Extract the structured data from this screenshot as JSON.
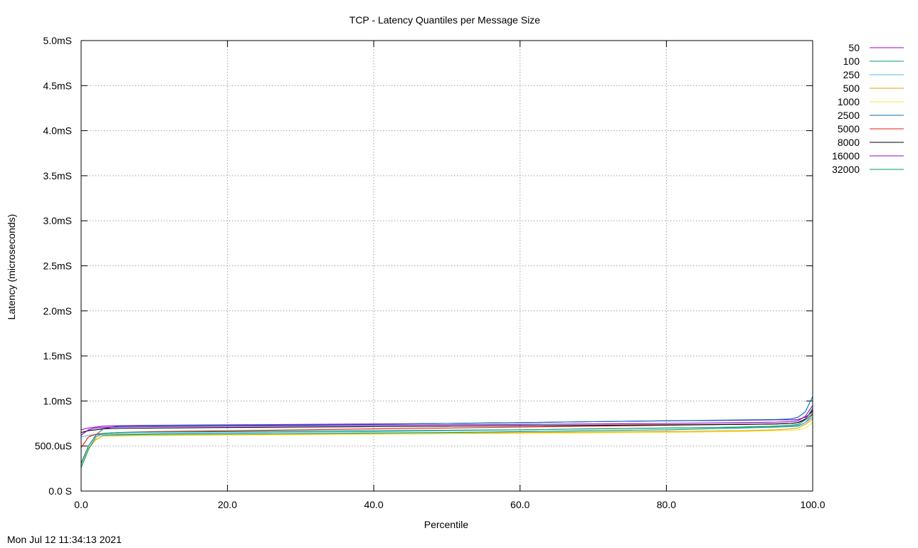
{
  "footer": {
    "timestamp": "Mon Jul 12 11:34:13 2021"
  },
  "chart_data": {
    "type": "line",
    "title": "TCP - Latency Quantiles per Message Size",
    "xlabel": "Percentile",
    "ylabel": "Latency (microseconds)",
    "xlim": [
      0,
      100
    ],
    "ylim": [
      0,
      5000
    ],
    "x_ticks": [
      0,
      20,
      40,
      60,
      80,
      100
    ],
    "x_tick_labels": [
      "0.0",
      "20.0",
      "40.0",
      "60.0",
      "80.0",
      "100.0"
    ],
    "y_ticks": [
      0,
      500,
      1000,
      1500,
      2000,
      2500,
      3000,
      3500,
      4000,
      4500,
      5000
    ],
    "y_tick_labels": [
      "0.0 S",
      "500.0uS",
      "1.0mS",
      "1.5mS",
      "2.0mS",
      "2.5mS",
      "3.0mS",
      "3.5mS",
      "4.0mS",
      "4.5mS",
      "5.0mS"
    ],
    "grid": true,
    "legend_position": "right",
    "x": [
      0,
      1,
      2,
      3,
      5,
      10,
      20,
      30,
      40,
      50,
      60,
      70,
      80,
      90,
      95,
      97,
      98,
      99,
      100
    ],
    "series": [
      {
        "name": "50",
        "color": "#9400d3",
        "values": [
          680,
          700,
          710,
          720,
          725,
          730,
          735,
          740,
          745,
          750,
          760,
          770,
          780,
          785,
          790,
          790,
          795,
          820,
          880
        ]
      },
      {
        "name": "100",
        "color": "#009e73",
        "values": [
          290,
          480,
          570,
          620,
          625,
          630,
          635,
          640,
          645,
          650,
          660,
          670,
          680,
          700,
          710,
          715,
          720,
          760,
          850
        ]
      },
      {
        "name": "250",
        "color": "#56b4e9",
        "values": [
          600,
          620,
          625,
          630,
          635,
          640,
          650,
          655,
          660,
          670,
          680,
          690,
          700,
          710,
          720,
          725,
          730,
          760,
          820
        ]
      },
      {
        "name": "500",
        "color": "#e69f00",
        "values": [
          270,
          470,
          570,
          610,
          615,
          620,
          625,
          630,
          635,
          640,
          650,
          655,
          660,
          670,
          680,
          690,
          700,
          740,
          800
        ]
      },
      {
        "name": "1000",
        "color": "#f0e442",
        "values": [
          280,
          480,
          580,
          610,
          610,
          615,
          620,
          625,
          630,
          635,
          640,
          645,
          650,
          660,
          670,
          675,
          680,
          700,
          760
        ]
      },
      {
        "name": "2500",
        "color": "#0072b2",
        "values": [
          310,
          500,
          620,
          690,
          720,
          725,
          730,
          735,
          740,
          750,
          760,
          770,
          780,
          790,
          795,
          800,
          820,
          880,
          1050
        ]
      },
      {
        "name": "5000",
        "color": "#e51e10",
        "values": [
          480,
          600,
          630,
          640,
          650,
          660,
          670,
          680,
          690,
          700,
          710,
          720,
          730,
          740,
          745,
          750,
          760,
          790,
          860
        ]
      },
      {
        "name": "8000",
        "color": "#000000",
        "values": [
          650,
          670,
          680,
          690,
          695,
          700,
          705,
          710,
          715,
          720,
          725,
          730,
          735,
          740,
          745,
          750,
          760,
          800,
          900
        ]
      },
      {
        "name": "16000",
        "color": "#9400d3",
        "values": [
          620,
          680,
          700,
          705,
          710,
          715,
          720,
          725,
          730,
          735,
          740,
          745,
          750,
          760,
          765,
          770,
          780,
          830,
          950
        ]
      },
      {
        "name": "32000",
        "color": "#009e73",
        "values": [
          260,
          460,
          600,
          640,
          650,
          655,
          660,
          665,
          670,
          675,
          680,
          690,
          700,
          710,
          720,
          730,
          740,
          790,
          920
        ]
      }
    ]
  }
}
